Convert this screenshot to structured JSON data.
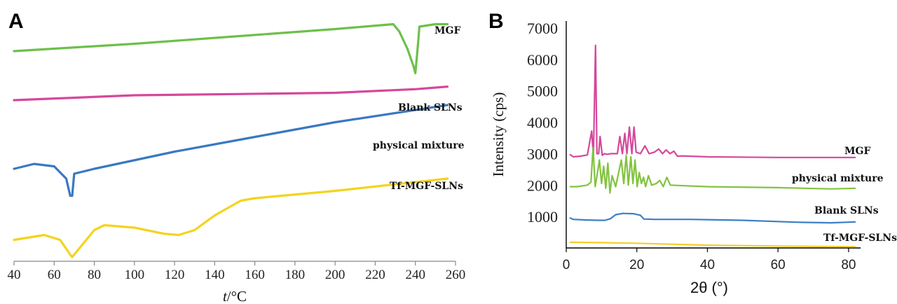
{
  "panels": {
    "a_letter": "A",
    "b_letter": "B"
  },
  "chart_data": [
    {
      "type": "line",
      "panel": "A",
      "xlabel_italic": "t",
      "xlabel_rest": "/°C",
      "ylabel": "",
      "xlim": [
        40,
        260
      ],
      "x_ticks": [
        "40",
        "60",
        "80",
        "100",
        "120",
        "140",
        "160",
        "180",
        "200",
        "220",
        "240",
        "260"
      ],
      "yticks_shown": false,
      "series": [
        {
          "name": "MGF",
          "color": "#6cc04a",
          "x": [
            40,
            100,
            150,
            200,
            229,
            232,
            236,
            239,
            240,
            241,
            242,
            250,
            256
          ],
          "y": [
            0.82,
            0.85,
            0.88,
            0.91,
            0.93,
            0.9,
            0.83,
            0.76,
            0.73,
            0.82,
            0.92,
            0.93,
            0.93
          ]
        },
        {
          "name": "Blank SLNs",
          "color": "#d4489b",
          "x": [
            40,
            100,
            150,
            200,
            240,
            256
          ],
          "y": [
            0.62,
            0.64,
            0.645,
            0.65,
            0.665,
            0.675
          ]
        },
        {
          "name": "physical mixture",
          "color": "#3a78c2",
          "x": [
            40,
            50,
            60,
            66,
            68,
            69,
            70,
            80,
            120,
            160,
            200,
            256
          ],
          "y": [
            0.34,
            0.36,
            0.35,
            0.3,
            0.23,
            0.23,
            0.32,
            0.34,
            0.41,
            0.47,
            0.53,
            0.6
          ]
        },
        {
          "name": "Tf-MGF-SLNs",
          "color": "#f5d31c",
          "x": [
            40,
            55,
            63,
            68,
            69,
            73,
            80,
            85,
            100,
            115,
            122,
            130,
            140,
            153,
            160,
            200,
            256
          ],
          "y": [
            0.05,
            0.07,
            0.05,
            -0.01,
            -0.02,
            0.02,
            0.09,
            0.11,
            0.1,
            0.075,
            0.07,
            0.09,
            0.15,
            0.21,
            0.22,
            0.25,
            0.3
          ]
        }
      ]
    },
    {
      "type": "line",
      "panel": "B",
      "ylabel": "Intensity (cps)",
      "xlabel": "2θ (°)",
      "xlim": [
        0,
        83
      ],
      "ylim": [
        0,
        7000
      ],
      "x_ticks": [
        "0",
        "20",
        "40",
        "60",
        "80"
      ],
      "y_ticks": [
        "1000",
        "2000",
        "3000",
        "4000",
        "5000",
        "6000",
        "7000"
      ],
      "series": [
        {
          "name": "MGF",
          "color": "#d4489b",
          "x": [
            1,
            2,
            4,
            6,
            7.2,
            7.7,
            8.3,
            8.7,
            9.2,
            9.6,
            10.2,
            10.8,
            11.6,
            12.6,
            14.5,
            15.2,
            15.9,
            16.6,
            17.2,
            17.9,
            18.6,
            19.2,
            19.8,
            21,
            22.3,
            23.5,
            25,
            26.2,
            27.3,
            28.3,
            29.4,
            30.5,
            31.5,
            33,
            40,
            60,
            82
          ],
          "y": [
            2980,
            2900,
            2920,
            2960,
            3720,
            2900,
            6450,
            3000,
            3000,
            3550,
            2950,
            3000,
            2980,
            3000,
            3000,
            3550,
            3000,
            3650,
            3000,
            3850,
            3000,
            3850,
            3050,
            3000,
            3250,
            3000,
            3050,
            3150,
            3000,
            3120,
            3000,
            3080,
            2920,
            2930,
            2900,
            2880,
            2880
          ]
        },
        {
          "name": "physical mixture",
          "color": "#82c341",
          "x": [
            1,
            3,
            6,
            7,
            7.6,
            8.2,
            8.8,
            9.4,
            10,
            10.6,
            11.2,
            11.8,
            12.4,
            13,
            14,
            15.6,
            16.3,
            17,
            17.6,
            18.3,
            18.9,
            19.5,
            20.1,
            20.7,
            21.3,
            21.9,
            22.5,
            23.3,
            24.2,
            25.5,
            26.5,
            27.5,
            28.5,
            29.5,
            40,
            60,
            75,
            82
          ],
          "y": [
            1950,
            1950,
            2000,
            2100,
            3200,
            1950,
            2350,
            2800,
            2050,
            2600,
            1900,
            2700,
            1750,
            2300,
            1950,
            2800,
            2050,
            2950,
            2000,
            2900,
            2050,
            2800,
            1950,
            2400,
            2050,
            2250,
            1950,
            2300,
            2000,
            2050,
            2150,
            1950,
            2250,
            2000,
            1950,
            1920,
            1880,
            1900
          ]
        },
        {
          "name": "Blank SLNs",
          "color": "#3d7fc4",
          "x": [
            1,
            2,
            6,
            9,
            11,
            12.5,
            14,
            16,
            19,
            21,
            22,
            25,
            35,
            50,
            65,
            75,
            82
          ],
          "y": [
            960,
            910,
            890,
            880,
            880,
            930,
            1060,
            1100,
            1090,
            1040,
            920,
            910,
            910,
            880,
            820,
            800,
            830
          ]
        },
        {
          "name": "Tf-MGF-SLNs",
          "color": "#f2cf2c",
          "x": [
            1,
            10,
            20,
            40,
            60,
            75,
            82
          ],
          "y": [
            180,
            170,
            150,
            90,
            60,
            45,
            40
          ]
        }
      ]
    }
  ]
}
